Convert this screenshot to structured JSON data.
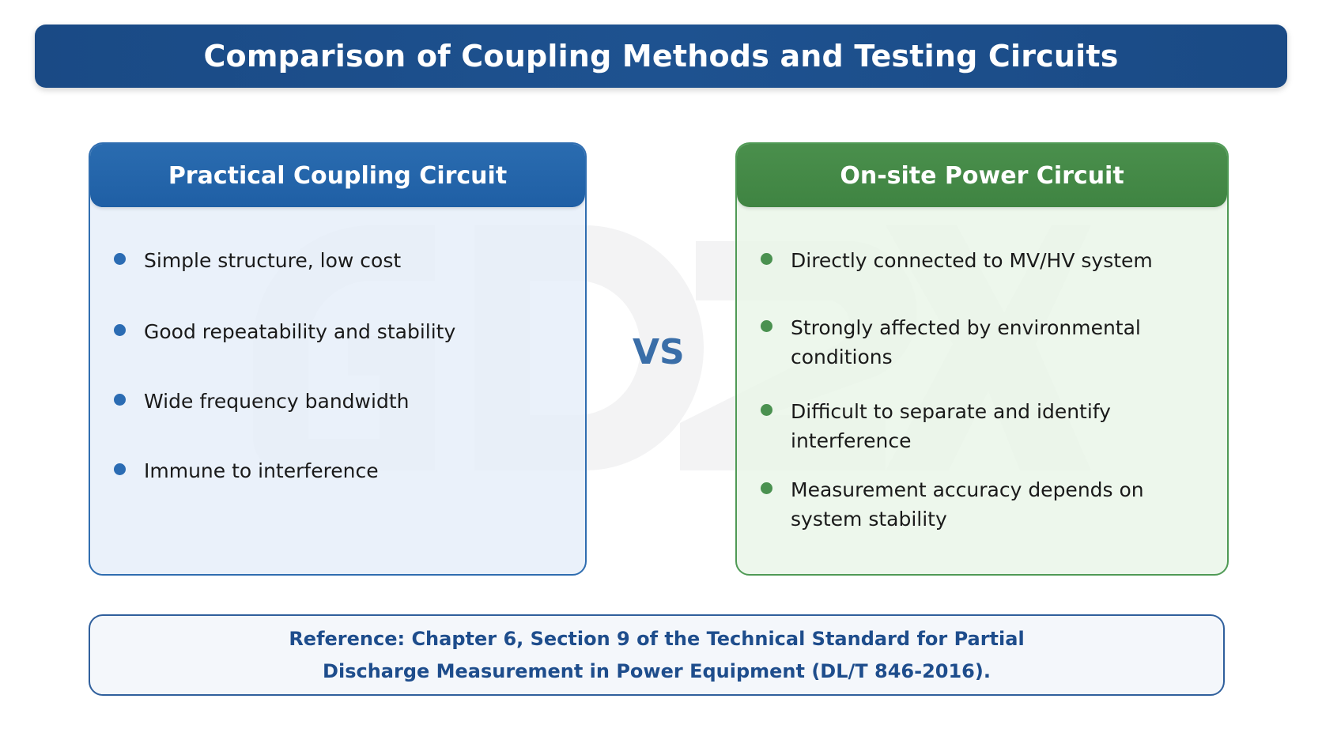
{
  "title": "Comparison of Coupling Methods and Testing Circuits",
  "left_panel": {
    "heading": "Practical Coupling Circuit",
    "items": [
      "Simple structure, low cost",
      "Good repeatability and stability",
      "Wide frequency bandwidth",
      "Immune to interference"
    ]
  },
  "vs_label": "VS",
  "right_panel": {
    "heading": "On-site Power Circuit",
    "items": [
      "Directly connected to MV/HV system",
      "Strongly affected by environmental conditions",
      "Difficult to separate and identify interference",
      "Measurement accuracy depends on system stability"
    ]
  },
  "reference": "Reference: Chapter 6, Section 9 of the Technical Standard for Partial Discharge Measurement in Power Equipment (DL/T 846-2016).",
  "watermark": "GDZX",
  "colors": {
    "title_bar": "#1a4a85",
    "left_accent": "#2a6cb0",
    "right_accent": "#4a8f4c",
    "vs": "#3a6ea8",
    "reference_text": "#1e4d8c"
  }
}
